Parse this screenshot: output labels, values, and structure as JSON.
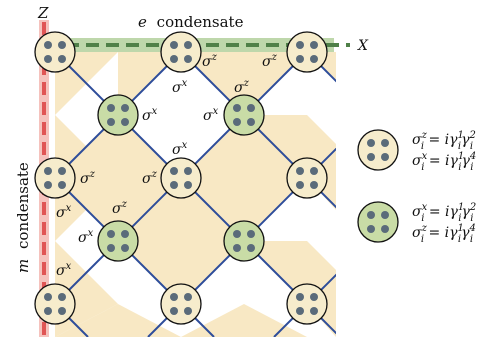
{
  "title": {
    "symbol": "e",
    "word": "condensate"
  },
  "side_title": {
    "symbol": "m",
    "word": "condensate"
  },
  "lines": {
    "z_label": "Z",
    "x_label": "X"
  },
  "colors": {
    "tile_fill": "#f8e8c4",
    "edge": "#2e4d9a",
    "qubit_dot": "#5a6b7a",
    "type_a_fill": "#f6eccc",
    "type_b_fill": "#c9dca6",
    "z_line": "#e05555",
    "z_band": "#f3b7b2",
    "x_line": "#4f8048",
    "x_band": "#b3d09c"
  },
  "operators": {
    "sz": "σ",
    "sz_sup": "z",
    "sx": "σ",
    "sx_sup": "x"
  },
  "legend": [
    {
      "type": "white",
      "line1": {
        "lhs": "σ",
        "lhs_sup": "z",
        "lhs_sub": "i",
        "rhs": "= iγ",
        "g1_sup": "1",
        "g1_sub": "i",
        "g2": "γ",
        "g2_sup": "2",
        "g2_sub": "i"
      },
      "line2": {
        "lhs": "σ",
        "lhs_sup": "x",
        "lhs_sub": "i",
        "rhs": "= iγ",
        "g1_sup": "1",
        "g1_sub": "i",
        "g2": "γ",
        "g2_sup": "4",
        "g2_sub": "i"
      }
    },
    {
      "type": "green",
      "line1": {
        "lhs": "σ",
        "lhs_sup": "x",
        "lhs_sub": "i",
        "rhs": "= iγ",
        "g1_sup": "1",
        "g1_sub": "i",
        "g2": "γ",
        "g2_sup": "2",
        "g2_sub": "i"
      },
      "line2": {
        "lhs": "σ",
        "lhs_sup": "z",
        "lhs_sub": "i",
        "rhs": "= iγ",
        "g1_sup": "1",
        "g1_sub": "i",
        "g2": "γ",
        "g2_sup": "4",
        "g2_sub": "i"
      }
    }
  ]
}
